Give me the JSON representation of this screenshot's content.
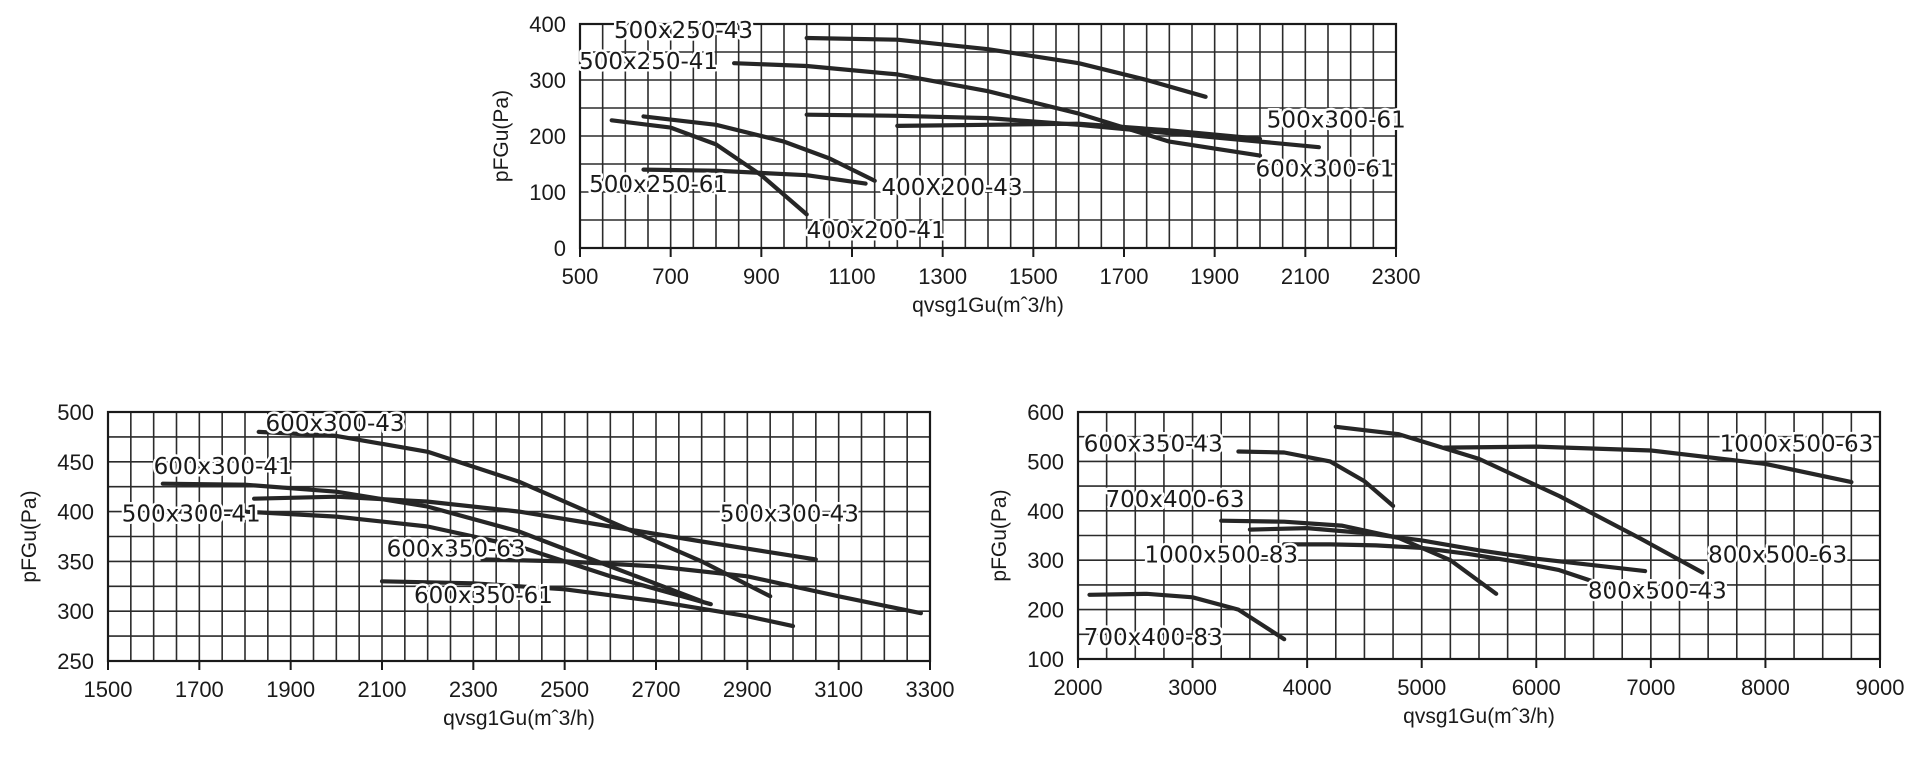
{
  "chart_data": [
    {
      "type": "line",
      "xlabel": "qvsg1Gu(mˆ3/h)",
      "ylabel": "pFGu(Pa)",
      "xlim": [
        500,
        2300
      ],
      "ylim": [
        0,
        400
      ],
      "xticks": [
        500,
        700,
        900,
        1100,
        1300,
        1500,
        1700,
        1900,
        2100,
        2300
      ],
      "yticks": [
        0,
        100,
        200,
        300,
        400
      ],
      "grid": true,
      "series": [
        {
          "name": "500x250-43",
          "x": [
            1000,
            1200,
            1400,
            1600,
            1750,
            1880
          ],
          "y": [
            375,
            372,
            355,
            330,
            300,
            270
          ]
        },
        {
          "name": "500x250-41",
          "x": [
            840,
            1000,
            1200,
            1400,
            1600,
            1800,
            2000
          ],
          "y": [
            330,
            325,
            310,
            280,
            240,
            190,
            165
          ]
        },
        {
          "name": "500x300-61",
          "x": [
            1000,
            1200,
            1400,
            1600,
            1800,
            2000,
            2130
          ],
          "y": [
            238,
            236,
            232,
            220,
            205,
            190,
            180
          ]
        },
        {
          "name": "600x300-61",
          "x": [
            1200,
            1400,
            1600,
            1800,
            2000
          ],
          "y": [
            218,
            220,
            222,
            210,
            195
          ]
        },
        {
          "name": "400X200-43",
          "x": [
            640,
            800,
            950,
            1050,
            1150
          ],
          "y": [
            235,
            220,
            190,
            160,
            120
          ]
        },
        {
          "name": "400x200-41",
          "x": [
            570,
            700,
            800,
            900,
            1000
          ],
          "y": [
            228,
            215,
            185,
            130,
            60
          ]
        },
        {
          "name": "500x250-61",
          "x": [
            640,
            800,
            1000,
            1130
          ],
          "y": [
            140,
            138,
            130,
            115
          ]
        }
      ],
      "labels": [
        {
          "text": "500x250-43",
          "x": 575,
          "y": 375
        },
        {
          "text": "500x250-41",
          "x": 498,
          "y": 320
        },
        {
          "text": "500x300-61",
          "x": 2015,
          "y": 215
        },
        {
          "text": "600x300-61",
          "x": 1990,
          "y": 128
        },
        {
          "text": "400X200-43",
          "x": 1165,
          "y": 95
        },
        {
          "text": "400x200-41",
          "x": 1000,
          "y": 18
        },
        {
          "text": "500x250-61",
          "x": 520,
          "y": 100
        }
      ]
    },
    {
      "type": "line",
      "xlabel": "qvsg1Gu(mˆ3/h)",
      "ylabel": "pFGu(Pa)",
      "xlim": [
        1500,
        3300
      ],
      "ylim": [
        250,
        500
      ],
      "xticks": [
        1500,
        1700,
        1900,
        2100,
        2300,
        2500,
        2700,
        2900,
        3100,
        3300
      ],
      "yticks": [
        250,
        300,
        350,
        400,
        450,
        500
      ],
      "grid": true,
      "series": [
        {
          "name": "600x300-43",
          "x": [
            1830,
            2000,
            2200,
            2400,
            2600,
            2800,
            2950
          ],
          "y": [
            480,
            476,
            460,
            430,
            390,
            350,
            315
          ]
        },
        {
          "name": "600x300-41",
          "x": [
            1620,
            1800,
            2000,
            2200,
            2400,
            2600,
            2800
          ],
          "y": [
            428,
            427,
            420,
            405,
            380,
            345,
            310
          ]
        },
        {
          "name": "500x300-41",
          "x": [
            1600,
            1800,
            2000,
            2200,
            2400,
            2600,
            2820
          ],
          "y": [
            400,
            400,
            395,
            385,
            365,
            335,
            307
          ]
        },
        {
          "name": "500x300-43",
          "x": [
            1820,
            2000,
            2200,
            2400,
            2600,
            2800,
            3050
          ],
          "y": [
            413,
            415,
            410,
            400,
            385,
            370,
            352
          ]
        },
        {
          "name": "600x350-63",
          "x": [
            2320,
            2500,
            2700,
            2900,
            3100,
            3280
          ],
          "y": [
            352,
            350,
            345,
            335,
            315,
            298
          ]
        },
        {
          "name": "600x350-61",
          "x": [
            2100,
            2300,
            2500,
            2700,
            2900,
            3000
          ],
          "y": [
            330,
            328,
            322,
            310,
            295,
            285
          ]
        }
      ],
      "labels": [
        {
          "text": "600x300-43",
          "x": 1845,
          "y": 481
        },
        {
          "text": "600x300-41",
          "x": 1600,
          "y": 438
        },
        {
          "text": "500x300-41",
          "x": 1530,
          "y": 390
        },
        {
          "text": "500x300-43",
          "x": 2840,
          "y": 390
        },
        {
          "text": "600x350-63",
          "x": 2110,
          "y": 355
        },
        {
          "text": "600x350-61",
          "x": 2170,
          "y": 308
        }
      ]
    },
    {
      "type": "line",
      "xlabel": "qvsg1Gu(mˆ3/h)",
      "ylabel": "pFGu(Pa)",
      "xlim": [
        2000,
        9000
      ],
      "ylim": [
        100,
        600
      ],
      "xticks": [
        2000,
        3000,
        4000,
        5000,
        6000,
        7000,
        8000,
        9000
      ],
      "yticks": [
        100,
        200,
        300,
        400,
        500,
        600
      ],
      "grid": true,
      "series": [
        {
          "name": "1000x500-63",
          "x": [
            5200,
            6000,
            7000,
            8000,
            8750
          ],
          "y": [
            528,
            530,
            522,
            495,
            458
          ]
        },
        {
          "name": "800x500-63",
          "x": [
            4250,
            4800,
            5500,
            6200,
            6900,
            7450
          ],
          "y": [
            570,
            555,
            505,
            430,
            345,
            275
          ]
        },
        {
          "name": "600x350-43",
          "x": [
            3400,
            3800,
            4200,
            4500,
            4750
          ],
          "y": [
            520,
            518,
            500,
            460,
            410
          ]
        },
        {
          "name": "700x400-63",
          "x": [
            3250,
            3800,
            4300,
            4800,
            5250,
            5650
          ],
          "y": [
            380,
            378,
            370,
            345,
            300,
            232
          ]
        },
        {
          "name": "1000x500-83",
          "x": [
            3500,
            4000,
            4500,
            5000,
            5500,
            6000,
            6950
          ],
          "y": [
            362,
            365,
            355,
            340,
            320,
            303,
            278
          ]
        },
        {
          "name": "800x500-43",
          "x": [
            3800,
            4200,
            4600,
            5000,
            5400,
            5800,
            6200,
            6650
          ],
          "y": [
            332,
            332,
            330,
            325,
            313,
            298,
            280,
            245
          ]
        },
        {
          "name": "700x400-83",
          "x": [
            2100,
            2600,
            3000,
            3400,
            3800
          ],
          "y": [
            230,
            232,
            225,
            200,
            140
          ]
        }
      ],
      "labels": [
        {
          "text": "600x350-43",
          "x": 2050,
          "y": 520
        },
        {
          "text": "1000x500-63",
          "x": 7600,
          "y": 520
        },
        {
          "text": "700x400-63",
          "x": 2240,
          "y": 408
        },
        {
          "text": "1000x500-83",
          "x": 2580,
          "y": 295
        },
        {
          "text": "800x500-63",
          "x": 7500,
          "y": 295
        },
        {
          "text": "800x500-43",
          "x": 6450,
          "y": 222
        },
        {
          "text": "700x400-83",
          "x": 2050,
          "y": 128
        }
      ]
    }
  ]
}
